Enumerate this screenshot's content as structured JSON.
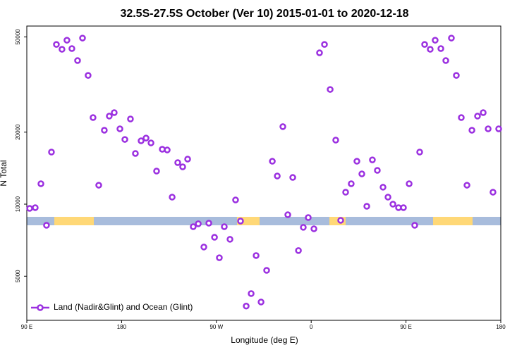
{
  "chart_data": {
    "type": "scatter",
    "title": "32.5S-27.5S October (Ver 10)   2015-01-01 to 2020-12-18",
    "x_label": "Longitude (deg E)",
    "y_label": "N Total",
    "log_y": true,
    "legend_position": "bottom-left",
    "xlim": [
      90,
      540
    ],
    "ylim": [
      3270,
      55500
    ],
    "xticks": [
      {
        "value": 90,
        "label": "90 E"
      },
      180,
      {
        "value": 270,
        "label": "90 W"
      },
      {
        "value": 360,
        "label": "0"
      },
      {
        "value": 450,
        "label": "90 E"
      },
      {
        "value": 540,
        "label": "180"
      }
    ],
    "yticks": [
      5000,
      10000,
      20000,
      50000
    ],
    "series": [
      {
        "name": "Land (Nadir&Glint) and Ocean (Glint)",
        "color": "#9b30e0",
        "x": [
          92.7,
          98.0,
          103.4,
          108.7,
          113.4,
          118.1,
          123.4,
          128.1,
          132.8,
          138.2,
          142.9,
          148.2,
          152.9,
          158.3,
          163.6,
          168.3,
          173.0,
          178.4,
          183.1,
          188.4,
          193.1,
          198.5,
          203.2,
          207.9,
          213.2,
          218.6,
          223.3,
          228.0,
          233.3,
          238.0,
          242.7,
          248.0,
          252.8,
          258.1,
          262.8,
          268.2,
          272.8,
          277.5,
          282.9,
          288.2,
          292.9,
          298.3,
          303.0,
          307.7,
          312.4,
          317.7,
          323.1,
          327.8,
          333.1,
          337.8,
          342.5,
          347.9,
          352.5,
          357.2,
          362.6,
          367.9,
          372.6,
          378.0,
          383.3,
          388.0,
          392.7,
          398.0,
          403.4,
          408.1,
          412.8,
          418.1,
          422.8,
          428.2,
          432.9,
          437.6,
          442.9,
          447.6,
          453.0,
          458.3,
          463.0,
          467.7,
          473.0,
          477.7,
          483.1,
          487.8,
          493.1,
          497.8,
          502.5,
          507.9,
          512.6,
          517.9,
          523.3,
          528.0,
          532.6,
          538.0
        ],
        "values": [
          9600,
          9670,
          12170,
          8160,
          16510,
          46500,
          44370,
          48420,
          44670,
          39810,
          49440,
          34520,
          23000,
          12000,
          20370,
          23330,
          24120,
          20640,
          18640,
          22700,
          16290,
          18390,
          18890,
          18030,
          13750,
          16960,
          16840,
          10700,
          14910,
          14320,
          15430,
          8050,
          8280,
          6620,
          8330,
          7270,
          5970,
          8050,
          7130,
          10410,
          8500,
          3750,
          4230,
          6100,
          3900,
          5290,
          15110,
          13110,
          21080,
          9030,
          12930,
          6400,
          8000,
          8790,
          7890,
          42890,
          46500,
          30150,
          18520,
          8560,
          11220,
          12170,
          15110,
          13380,
          9800,
          15310,
          13840,
          11770,
          10700,
          10000,
          9670,
          9670,
          12170,
          8160,
          16510,
          46500,
          44370,
          48420,
          44670,
          39810,
          49440,
          34520,
          23000,
          12000,
          20370,
          23330,
          24120,
          20640,
          11220,
          20640
        ]
      }
    ]
  }
}
